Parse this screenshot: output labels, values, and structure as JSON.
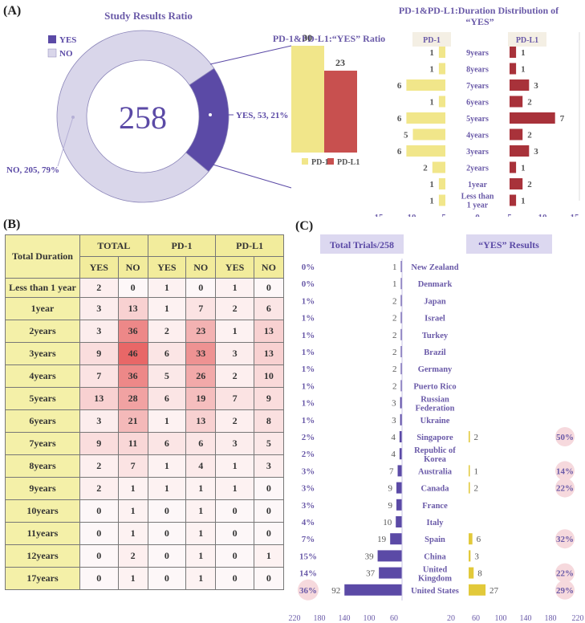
{
  "panels": {
    "a": "(A)",
    "b": "(B)",
    "c": "(C)"
  },
  "colors": {
    "yes": "#5b4aa6",
    "no": "#d9d6ea",
    "pd1": "#f1e68a",
    "pdl1": "#c8504f",
    "pd1_dark": "#e2c93a",
    "pdl1_dark": "#a8323a",
    "heat": "#e34a4a",
    "accent_text": "#6a5aa8"
  },
  "chart_data": [
    {
      "type": "pie",
      "title": "Study Results Ratio",
      "center_label": "258",
      "legend": [
        "YES",
        "NO"
      ],
      "slices": [
        {
          "name": "YES",
          "value": 53,
          "percent": 21,
          "label": "YES, 53, 21%"
        },
        {
          "name": "NO",
          "value": 205,
          "percent": 79,
          "label": "NO, 205, 79%"
        }
      ]
    },
    {
      "type": "bar",
      "title": "PD-1&PD-L1:“YES” Ratio",
      "categories": [
        "PD-1",
        "PD-L1"
      ],
      "values": [
        30,
        23
      ],
      "ylim": [
        0,
        32
      ]
    },
    {
      "type": "bar",
      "title": "PD-1&PD-L1:Duration Distribution of “YES”",
      "categories": [
        "9years",
        "8years",
        "7years",
        "6years",
        "5years",
        "4years",
        "3years",
        "2years",
        "1year",
        "Less than 1 year"
      ],
      "series": [
        {
          "name": "PD-1",
          "values": [
            1,
            1,
            6,
            1,
            6,
            5,
            6,
            2,
            1,
            1
          ]
        },
        {
          "name": "PD-L1",
          "values": [
            1,
            1,
            3,
            2,
            7,
            2,
            3,
            1,
            2,
            1
          ]
        }
      ],
      "xticks": [
        "15",
        "10",
        "5",
        "0",
        "5",
        "10",
        "15"
      ],
      "xlim": [
        -15,
        15
      ]
    },
    {
      "type": "table",
      "header_top": [
        "Total Duration",
        "TOTAL",
        "PD-1",
        "PD-L1"
      ],
      "header_sub": [
        "YES",
        "NO",
        "YES",
        "NO",
        "YES",
        "NO"
      ],
      "rows": [
        [
          "Less than 1 year",
          2,
          0,
          1,
          0,
          1,
          0
        ],
        [
          "1year",
          3,
          13,
          1,
          7,
          2,
          6
        ],
        [
          "2years",
          3,
          36,
          2,
          23,
          1,
          13
        ],
        [
          "3years",
          9,
          46,
          6,
          33,
          3,
          13
        ],
        [
          "4years",
          7,
          36,
          5,
          26,
          2,
          10
        ],
        [
          "5years",
          13,
          28,
          6,
          19,
          7,
          9
        ],
        [
          "6years",
          3,
          21,
          1,
          13,
          2,
          8
        ],
        [
          "7years",
          9,
          11,
          6,
          6,
          3,
          5
        ],
        [
          "8years",
          2,
          7,
          1,
          4,
          1,
          3
        ],
        [
          "9years",
          2,
          1,
          1,
          1,
          1,
          0
        ],
        [
          "10years",
          0,
          1,
          0,
          1,
          0,
          0
        ],
        [
          "11years",
          0,
          1,
          0,
          1,
          0,
          0
        ],
        [
          "12years",
          0,
          2,
          0,
          1,
          0,
          1
        ],
        [
          "17years",
          0,
          1,
          0,
          1,
          0,
          0
        ]
      ]
    },
    {
      "type": "bar",
      "header_left": "Total Trials/258",
      "header_right": "“YES” Results",
      "rows": [
        {
          "country": "New Zealand",
          "pct": "0%",
          "trials": 1,
          "yes": null,
          "yes_pct": ""
        },
        {
          "country": "Denmark",
          "pct": "0%",
          "trials": 1,
          "yes": null,
          "yes_pct": ""
        },
        {
          "country": "Japan",
          "pct": "1%",
          "trials": 2,
          "yes": null,
          "yes_pct": ""
        },
        {
          "country": "Israel",
          "pct": "1%",
          "trials": 2,
          "yes": null,
          "yes_pct": ""
        },
        {
          "country": "Turkey",
          "pct": "1%",
          "trials": 2,
          "yes": null,
          "yes_pct": ""
        },
        {
          "country": "Brazil",
          "pct": "1%",
          "trials": 2,
          "yes": null,
          "yes_pct": ""
        },
        {
          "country": "Germany",
          "pct": "1%",
          "trials": 2,
          "yes": null,
          "yes_pct": ""
        },
        {
          "country": "Puerto Rico",
          "pct": "1%",
          "trials": 2,
          "yes": null,
          "yes_pct": ""
        },
        {
          "country": "Russian Federation",
          "pct": "1%",
          "trials": 3,
          "yes": null,
          "yes_pct": ""
        },
        {
          "country": "Ukraine",
          "pct": "1%",
          "trials": 3,
          "yes": null,
          "yes_pct": ""
        },
        {
          "country": "Singapore",
          "pct": "2%",
          "trials": 4,
          "yes": 2,
          "yes_pct": "50%"
        },
        {
          "country": "Republic of Korea",
          "pct": "2%",
          "trials": 4,
          "yes": null,
          "yes_pct": ""
        },
        {
          "country": "Australia",
          "pct": "3%",
          "trials": 7,
          "yes": 1,
          "yes_pct": "14%"
        },
        {
          "country": "Canada",
          "pct": "3%",
          "trials": 9,
          "yes": 2,
          "yes_pct": "22%"
        },
        {
          "country": "France",
          "pct": "3%",
          "trials": 9,
          "yes": null,
          "yes_pct": ""
        },
        {
          "country": "Italy",
          "pct": "4%",
          "trials": 10,
          "yes": null,
          "yes_pct": ""
        },
        {
          "country": "Spain",
          "pct": "7%",
          "trials": 19,
          "yes": 6,
          "yes_pct": "32%"
        },
        {
          "country": "China",
          "pct": "15%",
          "trials": 39,
          "yes": 3,
          "yes_pct": ""
        },
        {
          "country": "United Kingdom",
          "pct": "14%",
          "trials": 37,
          "yes": 8,
          "yes_pct": "22%"
        },
        {
          "country": "United States",
          "pct": "36%",
          "trials": 92,
          "yes": 27,
          "yes_pct": "29%"
        }
      ],
      "xticks_left": [
        "220",
        "180",
        "140",
        "100",
        "60"
      ],
      "xticks_right": [
        "20",
        "60",
        "100",
        "140",
        "180",
        "220"
      ]
    }
  ]
}
